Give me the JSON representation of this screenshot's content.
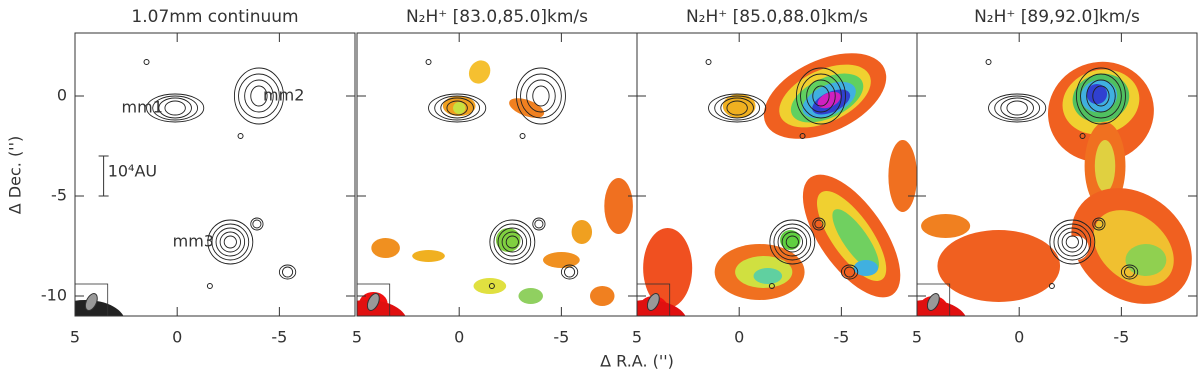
{
  "x_label": "Δ R.A. ('')",
  "y_label": "Δ Dec. ('')",
  "chart_data": [
    {
      "type": "map",
      "title": "1.07mm continuum",
      "annotations": [
        "mm1",
        "mm2",
        "mm3",
        "10⁴AU"
      ],
      "xlim": [
        5,
        -8.7
      ],
      "xticks": [
        5,
        0,
        -5
      ],
      "ylim": [
        -11,
        3.15
      ],
      "yticks": [
        0,
        -5,
        -10
      ]
    },
    {
      "type": "map",
      "title": "N₂H⁺ [83.0,85.0]km/s",
      "xlim": [
        5,
        -8.7
      ],
      "xticks": [
        5,
        0,
        -5
      ],
      "ylim": [
        -11,
        3.15
      ],
      "yticks": [
        0,
        -5,
        -10
      ]
    },
    {
      "type": "map",
      "title": "N₂H⁺ [85.0,88.0]km/s",
      "xlim": [
        5,
        -8.7
      ],
      "xticks": [
        5,
        0,
        -5
      ],
      "ylim": [
        -11,
        3.15
      ],
      "yticks": [
        0,
        -5,
        -10
      ]
    },
    {
      "type": "map",
      "title": "N₂H⁺ [89,92.0]km/s",
      "xlim": [
        5,
        -8.7
      ],
      "xticks": [
        5,
        0,
        -5
      ],
      "ylim": [
        -11,
        3.15
      ],
      "yticks": [
        0,
        -5,
        -10
      ]
    }
  ]
}
